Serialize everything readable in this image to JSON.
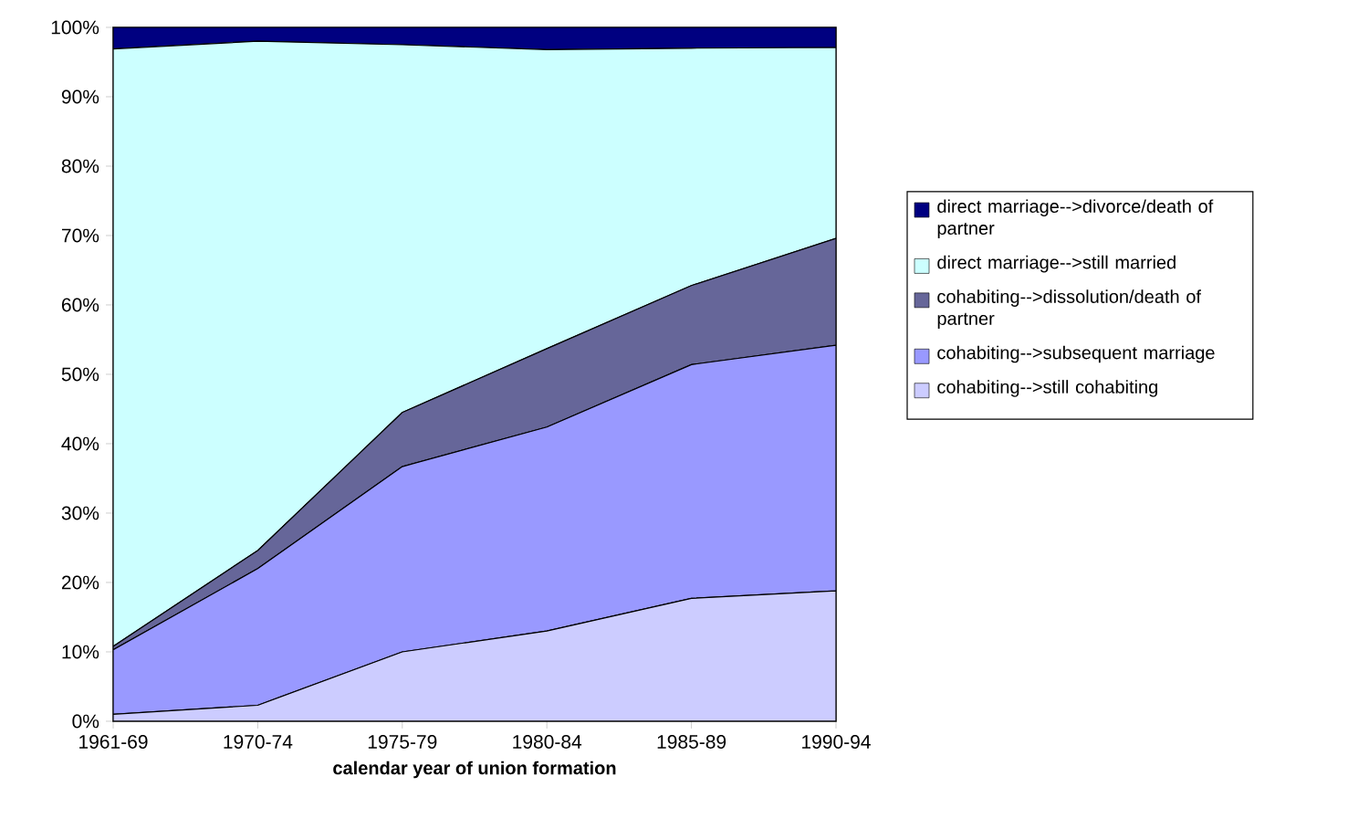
{
  "chart_data": {
    "type": "area",
    "stacked": true,
    "xlabel": "calendar year of union formation",
    "categories": [
      "1961-69",
      "1970-74",
      "1975-79",
      "1980-84",
      "1985-89",
      "1990-94"
    ],
    "ylim": [
      0,
      100
    ],
    "yticks": [
      {
        "value": 0,
        "label": "0%"
      },
      {
        "value": 10,
        "label": "10%"
      },
      {
        "value": 20,
        "label": "20%"
      },
      {
        "value": 30,
        "label": "30%"
      },
      {
        "value": 40,
        "label": "40%"
      },
      {
        "value": 50,
        "label": "50%"
      },
      {
        "value": 60,
        "label": "60%"
      },
      {
        "value": 70,
        "label": "70%"
      },
      {
        "value": 80,
        "label": "80%"
      },
      {
        "value": 90,
        "label": "90%"
      },
      {
        "value": 100,
        "label": "100%"
      }
    ],
    "legend": "right",
    "series": [
      {
        "name": "cohabiting-->still cohabiting",
        "color": "#ccccff",
        "values": [
          1,
          2.3,
          10,
          13,
          17.7,
          18.8
        ]
      },
      {
        "name": "cohabiting-->subsequent marriage",
        "color": "#9999ff",
        "values": [
          9.3,
          19.7,
          26.7,
          29.4,
          33.7,
          35.4
        ]
      },
      {
        "name": "cohabiting-->dissolution/death of partner",
        "color": "#666699",
        "values": [
          0.5,
          2.6,
          7.8,
          11.3,
          11.4,
          15.4
        ]
      },
      {
        "name": "direct marriage-->still married",
        "color": "#ccffff",
        "values": [
          86.1,
          73.4,
          53,
          43.1,
          34.2,
          27.5
        ]
      },
      {
        "name": "direct marriage-->divorce/death of partner",
        "color": "#000080",
        "values": [
          3.1,
          2,
          2.5,
          3.2,
          3,
          2.9
        ]
      }
    ]
  }
}
